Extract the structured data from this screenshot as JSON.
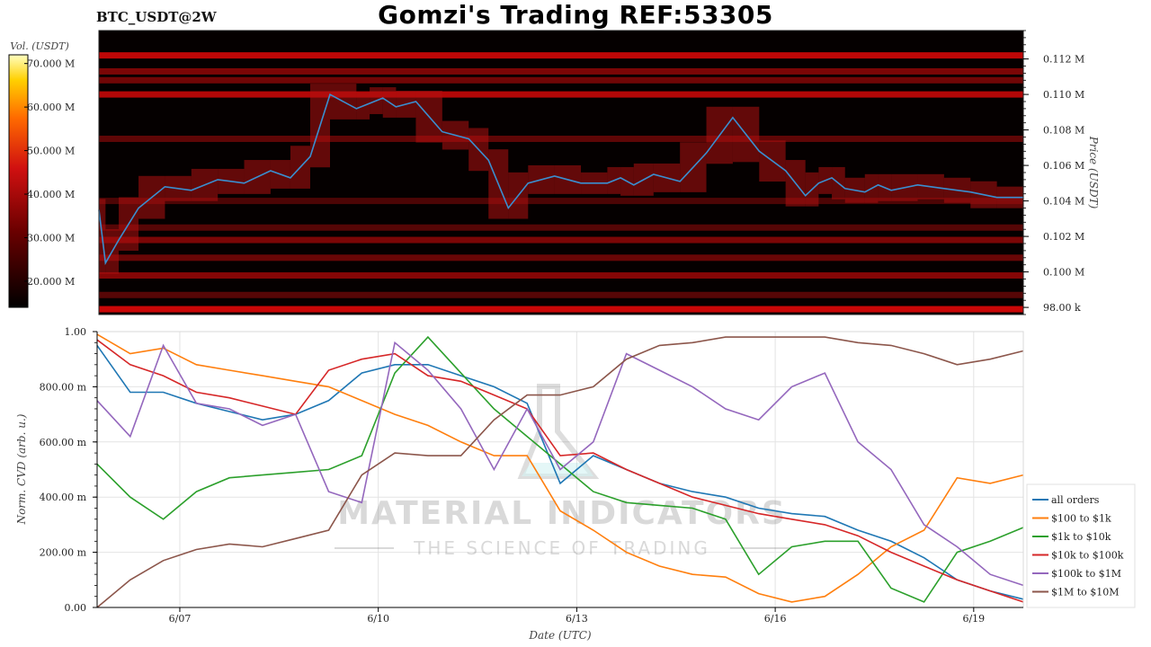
{
  "header": {
    "title": "Gomzi's Trading REF:53305",
    "pair": "BTC_USDT@2W"
  },
  "watermark": {
    "brand": "MATERIAL INDICATORS",
    "tagline": "THE SCIENCE OF TRADING"
  },
  "colors": {
    "price_line": "#3a8fd0",
    "heatmap_bg": "#050000",
    "heat_low": "#3a0000",
    "heat_mid": "#8a0000",
    "heat_high": "#e81818"
  },
  "chart_data": [
    {
      "type": "heatmap",
      "title": "",
      "colorbar_label": "Vol. (USDT)",
      "colorbar_ticks": [
        "70.000 M",
        "60.000 M",
        "50.000 M",
        "40.000 M",
        "30.000 M",
        "20.000 M"
      ],
      "colorbar_range": [
        14000000,
        72000000
      ],
      "ylabel": "Price (USDT)",
      "ylim": [
        97600,
        113600
      ],
      "yticks": [
        {
          "value": 98000,
          "label": "98.00 k"
        },
        {
          "value": 100000,
          "label": "0.100 M"
        },
        {
          "value": 102000,
          "label": "0.102 M"
        },
        {
          "value": 104000,
          "label": "0.104 M"
        },
        {
          "value": 106000,
          "label": "0.106 M"
        },
        {
          "value": 108000,
          "label": "0.108 M"
        },
        {
          "value": 110000,
          "label": "0.110 M"
        },
        {
          "value": 112000,
          "label": "0.112 M"
        }
      ],
      "xlim": [
        0,
        14
      ],
      "liquidity_bands": [
        {
          "price": 112200,
          "intensity": 0.85
        },
        {
          "price": 111300,
          "intensity": 0.55
        },
        {
          "price": 110800,
          "intensity": 0.5
        },
        {
          "price": 110000,
          "intensity": 0.8
        },
        {
          "price": 107500,
          "intensity": 0.4
        },
        {
          "price": 104000,
          "intensity": 0.3
        },
        {
          "price": 102500,
          "intensity": 0.35
        },
        {
          "price": 101800,
          "intensity": 0.55
        },
        {
          "price": 100800,
          "intensity": 0.45
        },
        {
          "price": 99800,
          "intensity": 0.6
        },
        {
          "price": 98700,
          "intensity": 0.35
        },
        {
          "price": 97900,
          "intensity": 0.9
        }
      ],
      "price_series": {
        "name": "",
        "x": [
          0,
          0.1,
          0.3,
          0.6,
          1.0,
          1.4,
          1.8,
          2.2,
          2.6,
          2.9,
          3.2,
          3.5,
          3.9,
          4.1,
          4.3,
          4.5,
          4.8,
          5.2,
          5.6,
          5.9,
          6.2,
          6.5,
          6.9,
          7.3,
          7.7,
          7.9,
          8.1,
          8.4,
          8.8,
          9.2,
          9.6,
          10.0,
          10.4,
          10.7,
          10.9,
          11.1,
          11.3,
          11.6,
          11.8,
          12.0,
          12.4,
          12.8,
          13.2,
          13.6,
          14.0
        ],
        "y": [
          103500,
          100500,
          101800,
          103600,
          104800,
          104600,
          105200,
          105000,
          105700,
          105300,
          106500,
          110000,
          109200,
          109500,
          109800,
          109300,
          109600,
          107900,
          107500,
          106300,
          103600,
          105000,
          105400,
          105000,
          105000,
          105300,
          104900,
          105500,
          105100,
          106700,
          108700,
          106800,
          105700,
          104300,
          105000,
          105300,
          104700,
          104500,
          104900,
          104600,
          104900,
          104700,
          104500,
          104200,
          104200
        ]
      }
    },
    {
      "type": "line",
      "title": "",
      "xlabel": "Date (UTC)",
      "ylabel": "Norm. CVD (arb. u.)",
      "xlim": [
        0,
        14
      ],
      "ylim": [
        0,
        1
      ],
      "grid": true,
      "legend": "right",
      "xticks": [
        {
          "value": 1.25,
          "label": "6/07"
        },
        {
          "value": 4.25,
          "label": "6/10"
        },
        {
          "value": 7.25,
          "label": "6/13"
        },
        {
          "value": 10.25,
          "label": "6/16"
        },
        {
          "value": 13.25,
          "label": "6/19"
        }
      ],
      "yticks": [
        {
          "value": 0.0,
          "label": "0.00"
        },
        {
          "value": 0.2,
          "label": "200.00 m"
        },
        {
          "value": 0.4,
          "label": "400.00 m"
        },
        {
          "value": 0.6,
          "label": "600.00 m"
        },
        {
          "value": 0.8,
          "label": "800.00 m"
        },
        {
          "value": 1.0,
          "label": "1.00"
        }
      ],
      "x": [
        0,
        0.5,
        1,
        1.5,
        2,
        2.5,
        3,
        3.5,
        4,
        4.5,
        5,
        5.5,
        6,
        6.5,
        7,
        7.5,
        8,
        8.5,
        9,
        9.5,
        10,
        10.5,
        11,
        11.5,
        12,
        12.5,
        13,
        13.5,
        14
      ],
      "series": [
        {
          "name": "all orders",
          "color": "#1f77b4",
          "values": [
            0.95,
            0.78,
            0.78,
            0.74,
            0.71,
            0.68,
            0.7,
            0.75,
            0.85,
            0.88,
            0.88,
            0.84,
            0.8,
            0.74,
            0.45,
            0.55,
            0.5,
            0.45,
            0.42,
            0.4,
            0.36,
            0.34,
            0.33,
            0.28,
            0.24,
            0.18,
            0.1,
            0.06,
            0.03
          ]
        },
        {
          "name": "$100 to $1k",
          "color": "#ff7f0e",
          "values": [
            0.99,
            0.92,
            0.94,
            0.88,
            0.86,
            0.84,
            0.82,
            0.8,
            0.75,
            0.7,
            0.66,
            0.6,
            0.55,
            0.55,
            0.35,
            0.28,
            0.2,
            0.15,
            0.12,
            0.11,
            0.05,
            0.02,
            0.04,
            0.12,
            0.22,
            0.28,
            0.47,
            0.45,
            0.48
          ]
        },
        {
          "name": "$1k to $10k",
          "color": "#2ca02c",
          "values": [
            0.52,
            0.4,
            0.32,
            0.42,
            0.47,
            0.48,
            0.49,
            0.5,
            0.55,
            0.85,
            0.98,
            0.85,
            0.72,
            0.62,
            0.52,
            0.42,
            0.38,
            0.37,
            0.36,
            0.32,
            0.12,
            0.22,
            0.24,
            0.24,
            0.07,
            0.02,
            0.2,
            0.24,
            0.29
          ]
        },
        {
          "name": "$10k to $100k",
          "color": "#d62728",
          "values": [
            0.97,
            0.88,
            0.84,
            0.78,
            0.76,
            0.73,
            0.7,
            0.86,
            0.9,
            0.92,
            0.84,
            0.82,
            0.77,
            0.72,
            0.55,
            0.56,
            0.5,
            0.45,
            0.4,
            0.37,
            0.34,
            0.32,
            0.3,
            0.26,
            0.2,
            0.15,
            0.1,
            0.06,
            0.02
          ]
        },
        {
          "name": "$100k to $1M",
          "color": "#9467bd",
          "values": [
            0.75,
            0.62,
            0.95,
            0.74,
            0.72,
            0.66,
            0.7,
            0.42,
            0.38,
            0.96,
            0.86,
            0.72,
            0.5,
            0.72,
            0.5,
            0.6,
            0.92,
            0.86,
            0.8,
            0.72,
            0.68,
            0.8,
            0.85,
            0.6,
            0.5,
            0.3,
            0.22,
            0.12,
            0.08
          ]
        },
        {
          "name": "$1M to $10M",
          "color": "#8c564b",
          "values": [
            0.0,
            0.1,
            0.17,
            0.21,
            0.23,
            0.22,
            0.25,
            0.28,
            0.48,
            0.56,
            0.55,
            0.55,
            0.68,
            0.77,
            0.77,
            0.8,
            0.9,
            0.95,
            0.96,
            0.98,
            0.98,
            0.98,
            0.98,
            0.96,
            0.95,
            0.92,
            0.88,
            0.9,
            0.93
          ]
        }
      ]
    }
  ]
}
